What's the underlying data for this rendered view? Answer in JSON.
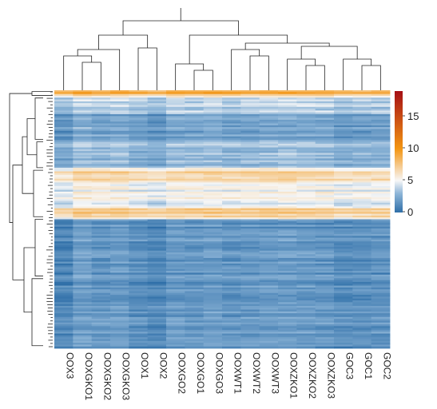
{
  "chart_data": {
    "type": "heatmap",
    "title": "",
    "xlabel": "",
    "ylabel": "",
    "columns": [
      "OOX3",
      "OOXGKO1",
      "OOXGKO2",
      "OOXGKO3",
      "OOX1",
      "OOX2",
      "OOXGO2",
      "OOXGO1",
      "OOXGO3",
      "OOXWT1",
      "OOXWT2",
      "OOXWT3",
      "OOXZKO1",
      "OOXZKO2",
      "OOXZKO3",
      "GOC3",
      "GOC1",
      "GOC2"
    ],
    "color_scale": {
      "min": 0,
      "max": 19,
      "ticks": [
        0,
        5,
        10,
        15
      ],
      "stops": [
        {
          "value": 0,
          "color": "#2f6fa8"
        },
        {
          "value": 3,
          "color": "#8fb6d8"
        },
        {
          "value": 5,
          "color": "#f7f7f7"
        },
        {
          "value": 10,
          "color": "#f39512"
        },
        {
          "value": 19,
          "color": "#a50f15"
        }
      ]
    },
    "row_dendrogram": true,
    "column_dendrogram": true,
    "row_profile": [
      {
        "to": 0.012,
        "value": 9.5
      },
      {
        "to": 0.03,
        "value": 6.0
      },
      {
        "to": 0.09,
        "value": 3.6
      },
      {
        "to": 0.19,
        "value": 2.2
      },
      {
        "to": 0.3,
        "value": 3.1
      },
      {
        "to": 0.36,
        "value": 6.6
      },
      {
        "to": 0.46,
        "value": 4.9
      },
      {
        "to": 0.49,
        "value": 6.8
      },
      {
        "to": 0.5,
        "value": 4.6
      },
      {
        "to": 0.72,
        "value": 1.5
      },
      {
        "to": 1.0,
        "value": 1.6
      }
    ]
  },
  "legend_labels": {
    "t0": "0",
    "t5": "5",
    "t10": "10",
    "t15": "15"
  }
}
